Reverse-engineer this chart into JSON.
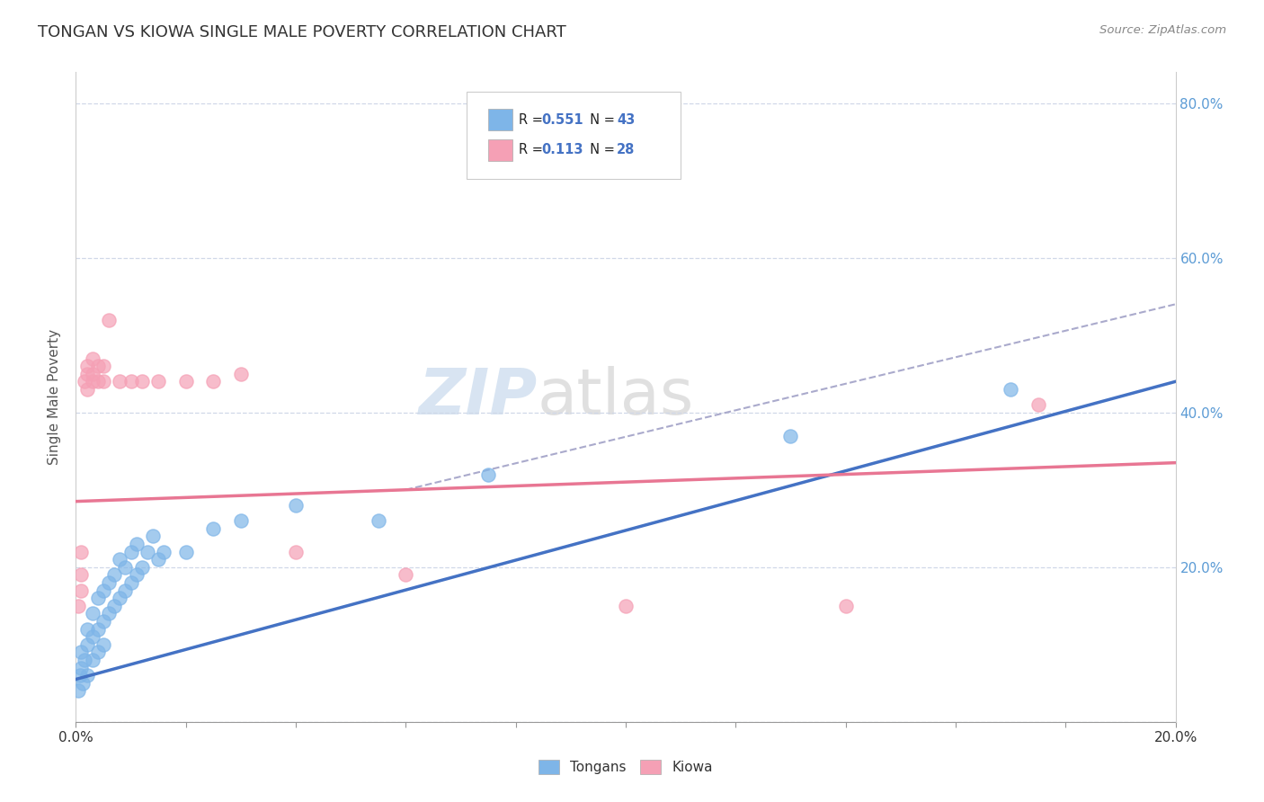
{
  "title": "TONGAN VS KIOWA SINGLE MALE POVERTY CORRELATION CHART",
  "source": "Source: ZipAtlas.com",
  "ylabel_label": "Single Male Poverty",
  "xlim": [
    0.0,
    0.2
  ],
  "ylim": [
    0.0,
    0.84
  ],
  "watermark": "ZIPatlas",
  "legend_tongans_R": "0.551",
  "legend_tongans_N": "43",
  "legend_kiowa_R": "0.113",
  "legend_kiowa_N": "28",
  "tongans_color": "#7eb5e8",
  "kiowa_color": "#f5a0b5",
  "tongans_line_color": "#4472c4",
  "kiowa_line_color": "#e87693",
  "trendline_color": "#aaaacc",
  "background_color": "#ffffff",
  "grid_color": "#d0d8e8",
  "tongans_scatter": [
    [
      0.0005,
      0.04
    ],
    [
      0.0008,
      0.06
    ],
    [
      0.001,
      0.07
    ],
    [
      0.001,
      0.09
    ],
    [
      0.0012,
      0.05
    ],
    [
      0.0015,
      0.08
    ],
    [
      0.002,
      0.06
    ],
    [
      0.002,
      0.1
    ],
    [
      0.002,
      0.12
    ],
    [
      0.003,
      0.08
    ],
    [
      0.003,
      0.11
    ],
    [
      0.003,
      0.14
    ],
    [
      0.004,
      0.09
    ],
    [
      0.004,
      0.12
    ],
    [
      0.004,
      0.16
    ],
    [
      0.005,
      0.1
    ],
    [
      0.005,
      0.13
    ],
    [
      0.005,
      0.17
    ],
    [
      0.006,
      0.14
    ],
    [
      0.006,
      0.18
    ],
    [
      0.007,
      0.15
    ],
    [
      0.007,
      0.19
    ],
    [
      0.008,
      0.16
    ],
    [
      0.008,
      0.21
    ],
    [
      0.009,
      0.17
    ],
    [
      0.009,
      0.2
    ],
    [
      0.01,
      0.18
    ],
    [
      0.01,
      0.22
    ],
    [
      0.011,
      0.19
    ],
    [
      0.011,
      0.23
    ],
    [
      0.012,
      0.2
    ],
    [
      0.013,
      0.22
    ],
    [
      0.014,
      0.24
    ],
    [
      0.015,
      0.21
    ],
    [
      0.016,
      0.22
    ],
    [
      0.02,
      0.22
    ],
    [
      0.025,
      0.25
    ],
    [
      0.03,
      0.26
    ],
    [
      0.04,
      0.28
    ],
    [
      0.055,
      0.26
    ],
    [
      0.075,
      0.32
    ],
    [
      0.13,
      0.37
    ],
    [
      0.17,
      0.43
    ]
  ],
  "kiowa_scatter": [
    [
      0.0005,
      0.15
    ],
    [
      0.001,
      0.17
    ],
    [
      0.001,
      0.19
    ],
    [
      0.001,
      0.22
    ],
    [
      0.0015,
      0.44
    ],
    [
      0.002,
      0.43
    ],
    [
      0.002,
      0.45
    ],
    [
      0.002,
      0.46
    ],
    [
      0.003,
      0.44
    ],
    [
      0.003,
      0.45
    ],
    [
      0.003,
      0.47
    ],
    [
      0.004,
      0.44
    ],
    [
      0.004,
      0.46
    ],
    [
      0.005,
      0.44
    ],
    [
      0.005,
      0.46
    ],
    [
      0.006,
      0.52
    ],
    [
      0.008,
      0.44
    ],
    [
      0.01,
      0.44
    ],
    [
      0.012,
      0.44
    ],
    [
      0.015,
      0.44
    ],
    [
      0.02,
      0.44
    ],
    [
      0.025,
      0.44
    ],
    [
      0.03,
      0.45
    ],
    [
      0.04,
      0.22
    ],
    [
      0.06,
      0.19
    ],
    [
      0.1,
      0.15
    ],
    [
      0.14,
      0.15
    ],
    [
      0.175,
      0.41
    ]
  ],
  "tongans_trendline": [
    [
      0.0,
      0.055
    ],
    [
      0.2,
      0.44
    ]
  ],
  "kiowa_trendline": [
    [
      0.0,
      0.285
    ],
    [
      0.2,
      0.335
    ]
  ],
  "overall_trendline": [
    [
      0.06,
      0.3
    ],
    [
      0.2,
      0.54
    ]
  ]
}
